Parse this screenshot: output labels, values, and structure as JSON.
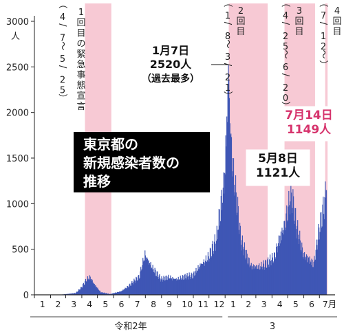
{
  "chart_data": {
    "type": "bar",
    "title": "東京都の新規感染者数の推移",
    "title_lines": [
      "東京都の",
      "新規感染者数の",
      "推移"
    ],
    "y_unit": "人",
    "ylim": [
      0,
      3000
    ],
    "y_ticks": [
      0,
      500,
      1000,
      1500,
      2000,
      2500,
      3000
    ],
    "y_tick_labels": [
      "0",
      "500",
      "1000",
      "1500",
      "2000",
      "2500",
      "3000"
    ],
    "x_axis_months": [
      "1",
      "2",
      "3",
      "4",
      "5",
      "6",
      "7",
      "8",
      "9",
      "10",
      "11",
      "12",
      "1",
      "2",
      "3",
      "4",
      "5",
      "6",
      "7月"
    ],
    "x_axis_eras": [
      "令和2年",
      "3"
    ],
    "series": [
      {
        "name": "",
        "color": "#3f56b5",
        "points_approx": [
          [
            "2020-01-15",
            0
          ],
          [
            "2020-02-20",
            2
          ],
          [
            "2020-03-20",
            20
          ],
          [
            "2020-03-31",
            78
          ],
          [
            "2020-04-10",
            170
          ],
          [
            "2020-04-17",
            201
          ],
          [
            "2020-04-25",
            120
          ],
          [
            "2020-05-07",
            30
          ],
          [
            "2020-05-25",
            8
          ],
          [
            "2020-06-15",
            40
          ],
          [
            "2020-07-02",
            110
          ],
          [
            "2020-07-20",
            200
          ],
          [
            "2020-07-31",
            463
          ],
          [
            "2020-08-15",
            300
          ],
          [
            "2020-08-31",
            170
          ],
          [
            "2020-09-15",
            200
          ],
          [
            "2020-09-30",
            180
          ],
          [
            "2020-10-15",
            200
          ],
          [
            "2020-10-31",
            215
          ],
          [
            "2020-11-15",
            350
          ],
          [
            "2020-11-30",
            420
          ],
          [
            "2020-12-15",
            600
          ],
          [
            "2020-12-31",
            1337
          ],
          [
            "2021-01-07",
            2520
          ],
          [
            "2021-01-14",
            1500
          ],
          [
            "2021-01-24",
            1000
          ],
          [
            "2021-01-31",
            600
          ],
          [
            "2021-02-10",
            450
          ],
          [
            "2021-02-20",
            330
          ],
          [
            "2021-03-10",
            320
          ],
          [
            "2021-03-21",
            340
          ],
          [
            "2021-04-05",
            420
          ],
          [
            "2021-04-15",
            650
          ],
          [
            "2021-04-25",
            800
          ],
          [
            "2021-05-08",
            1121
          ],
          [
            "2021-05-18",
            750
          ],
          [
            "2021-05-31",
            460
          ],
          [
            "2021-06-10",
            420
          ],
          [
            "2021-06-20",
            350
          ],
          [
            "2021-06-30",
            700
          ],
          [
            "2021-07-07",
            900
          ],
          [
            "2021-07-14",
            1149
          ]
        ]
      }
    ],
    "emergency_declarations": [
      {
        "label": "1回目の緊急事態宣言",
        "period": "（4/7～5/25）",
        "start": "2020-04-07",
        "end": "2020-05-25"
      },
      {
        "label": "2回目",
        "period": "（1/8～3/21）",
        "start": "2021-01-08",
        "end": "2021-03-21"
      },
      {
        "label": "3回目",
        "period": "（4/25～6/20）",
        "start": "2021-04-25",
        "end": "2021-06-20"
      },
      {
        "label": "4回目",
        "period": "（7/12～）",
        "start": "2021-07-12",
        "end": "2021-07-14"
      }
    ],
    "annotations": [
      {
        "lines": [
          "1月7日",
          "2520人",
          "（過去最多）"
        ],
        "date": "2021-01-07",
        "value": 2520,
        "color": "#111111"
      },
      {
        "lines": [
          "5月8日",
          "1121人"
        ],
        "date": "2021-05-08",
        "value": 1121,
        "color": "#111111"
      },
      {
        "lines": [
          "7月14日",
          "1149人"
        ],
        "date": "2021-07-14",
        "value": 1149,
        "color": "#d6336c"
      }
    ],
    "colors": {
      "bars": "#3f56b5",
      "emergency_band": "#f7c9d4",
      "title_box": "#000000",
      "title_text": "#ffffff",
      "highlight": "#d6336c"
    },
    "grid": false
  }
}
